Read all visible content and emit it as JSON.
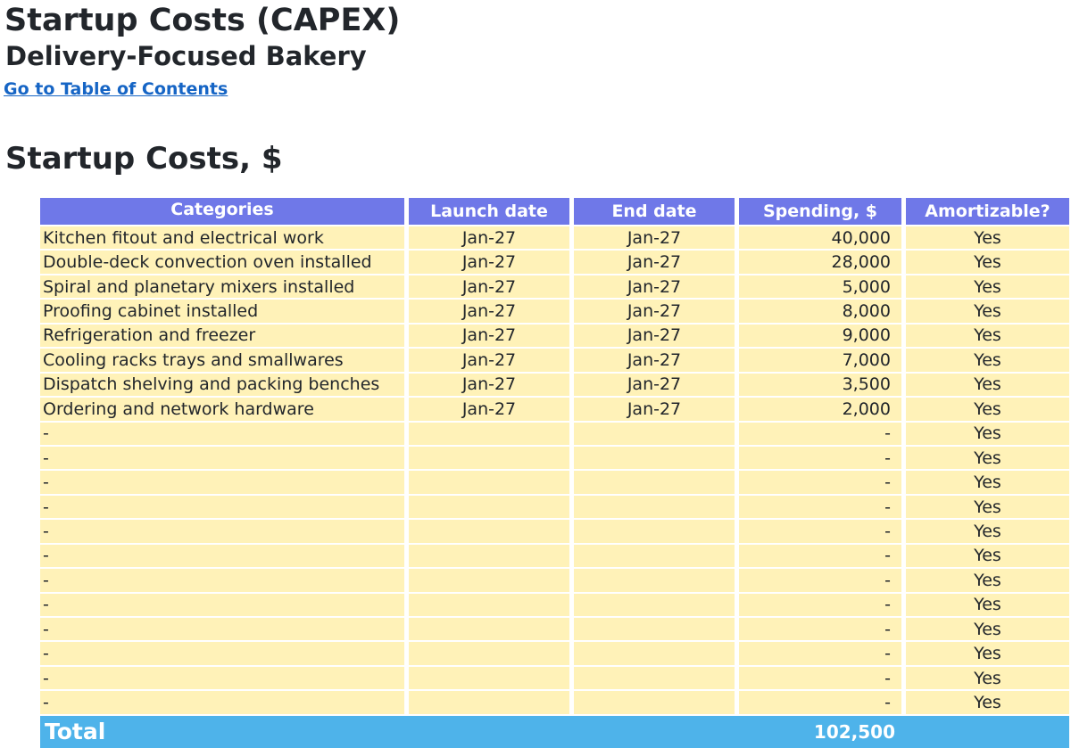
{
  "header": {
    "title": "Startup Costs (CAPEX)",
    "subtitle": "Delivery-Focused Bakery",
    "toc_link": "Go to Table of Contents"
  },
  "section": {
    "title": "Startup Costs, $"
  },
  "table": {
    "columns": {
      "categories": "Categories",
      "launch_date": "Launch date",
      "end_date": "End date",
      "spending": "Spending, $",
      "amortizable": "Amortizable?"
    },
    "rows": [
      {
        "category": "Kitchen fitout and electrical work",
        "launch": "Jan-27",
        "end": "Jan-27",
        "spending": "40,000",
        "amortizable": "Yes"
      },
      {
        "category": "Double-deck convection oven installed",
        "launch": "Jan-27",
        "end": "Jan-27",
        "spending": "28,000",
        "amortizable": "Yes"
      },
      {
        "category": "Spiral and planetary mixers installed",
        "launch": "Jan-27",
        "end": "Jan-27",
        "spending": "5,000",
        "amortizable": "Yes"
      },
      {
        "category": "Proofing cabinet installed",
        "launch": "Jan-27",
        "end": "Jan-27",
        "spending": "8,000",
        "amortizable": "Yes"
      },
      {
        "category": "Refrigeration and freezer",
        "launch": "Jan-27",
        "end": "Jan-27",
        "spending": "9,000",
        "amortizable": "Yes"
      },
      {
        "category": "Cooling racks trays and smallwares",
        "launch": "Jan-27",
        "end": "Jan-27",
        "spending": "7,000",
        "amortizable": "Yes"
      },
      {
        "category": "Dispatch shelving and packing benches",
        "launch": "Jan-27",
        "end": "Jan-27",
        "spending": "3,500",
        "amortizable": "Yes"
      },
      {
        "category": "Ordering and network hardware",
        "launch": "Jan-27",
        "end": "Jan-27",
        "spending": "2,000",
        "amortizable": "Yes"
      },
      {
        "category": "-",
        "launch": "",
        "end": "",
        "spending": "-",
        "amortizable": "Yes"
      },
      {
        "category": "-",
        "launch": "",
        "end": "",
        "spending": "-",
        "amortizable": "Yes"
      },
      {
        "category": "-",
        "launch": "",
        "end": "",
        "spending": "-",
        "amortizable": "Yes"
      },
      {
        "category": "-",
        "launch": "",
        "end": "",
        "spending": "-",
        "amortizable": "Yes"
      },
      {
        "category": "-",
        "launch": "",
        "end": "",
        "spending": "-",
        "amortizable": "Yes"
      },
      {
        "category": "-",
        "launch": "",
        "end": "",
        "spending": "-",
        "amortizable": "Yes"
      },
      {
        "category": "-",
        "launch": "",
        "end": "",
        "spending": "-",
        "amortizable": "Yes"
      },
      {
        "category": "-",
        "launch": "",
        "end": "",
        "spending": "-",
        "amortizable": "Yes"
      },
      {
        "category": "-",
        "launch": "",
        "end": "",
        "spending": "-",
        "amortizable": "Yes"
      },
      {
        "category": "-",
        "launch": "",
        "end": "",
        "spending": "-",
        "amortizable": "Yes"
      },
      {
        "category": "-",
        "launch": "",
        "end": "",
        "spending": "-",
        "amortizable": "Yes"
      },
      {
        "category": "-",
        "launch": "",
        "end": "",
        "spending": "-",
        "amortizable": "Yes"
      }
    ],
    "total": {
      "label": "Total",
      "spending": "102,500"
    }
  },
  "colors": {
    "header_bg": "#6f78e8",
    "row_bg": "#fff2b8",
    "total_bg": "#4eb3ea",
    "link": "#1665c5"
  }
}
